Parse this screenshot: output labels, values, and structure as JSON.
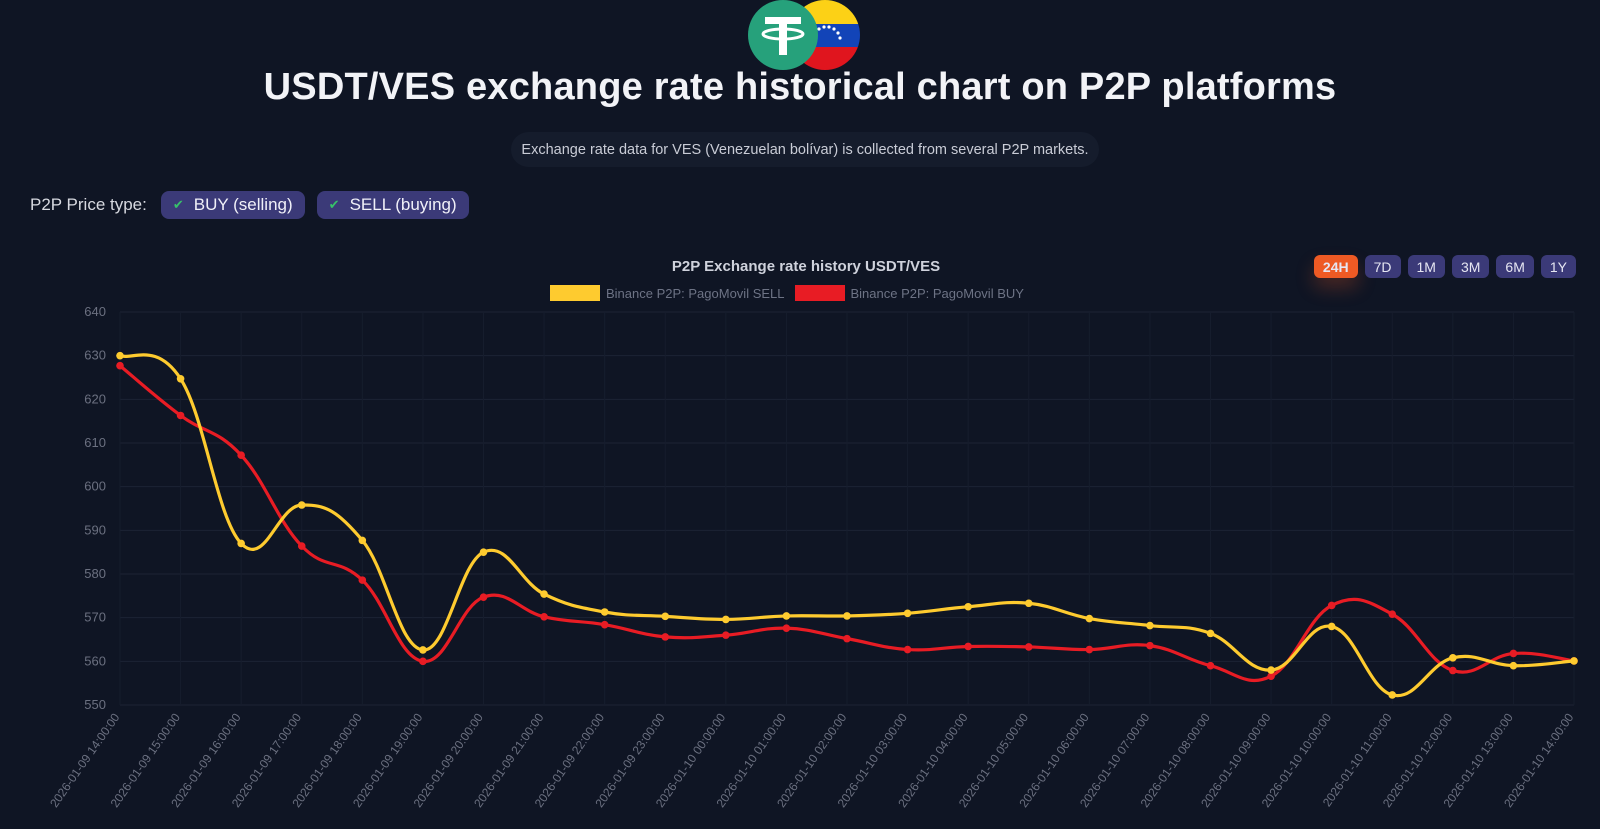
{
  "header": {
    "title": "USDT/VES exchange rate historical chart on P2P platforms",
    "subtitle": "Exchange rate data for VES (Venezuelan bolívar) is collected from several P2P markets."
  },
  "filters": {
    "label": "P2P Price type:",
    "options": [
      {
        "label": "BUY (selling)",
        "checked": true
      },
      {
        "label": "SELL (buying)",
        "checked": true
      }
    ]
  },
  "ranges": {
    "items": [
      "24H",
      "7D",
      "1M",
      "3M",
      "6M",
      "1Y"
    ],
    "active": "24H"
  },
  "colors": {
    "sell": "#fecb2f",
    "buy": "#e81c24",
    "accent": "#ee5a24",
    "chip": "#3b3a78"
  },
  "chart_data": {
    "type": "line",
    "title": "P2P Exchange rate history USDT/VES",
    "xlabel": "",
    "ylabel": "",
    "ylim": [
      550,
      640
    ],
    "yticks": [
      640,
      630,
      620,
      610,
      600,
      590,
      580,
      570,
      560,
      550
    ],
    "categories": [
      "2026-01-09 14:00:00",
      "2026-01-09 15:00:00",
      "2026-01-09 16:00:00",
      "2026-01-09 17:00:00",
      "2026-01-09 18:00:00",
      "2026-01-09 19:00:00",
      "2026-01-09 20:00:00",
      "2026-01-09 21:00:00",
      "2026-01-09 22:00:00",
      "2026-01-09 23:00:00",
      "2026-01-10 00:00:00",
      "2026-01-10 01:00:00",
      "2026-01-10 02:00:00",
      "2026-01-10 03:00:00",
      "2026-01-10 04:00:00",
      "2026-01-10 05:00:00",
      "2026-01-10 06:00:00",
      "2026-01-10 07:00:00",
      "2026-01-10 08:00:00",
      "2026-01-10 09:00:00",
      "2026-01-10 10:00:00",
      "2026-01-10 11:00:00",
      "2026-01-10 12:00:00",
      "2026-01-10 13:00:00",
      "2026-01-10 14:00:00"
    ],
    "series": [
      {
        "name": "Binance P2P: PagoMovil SELL",
        "values": [
          630,
          624.7,
          587,
          595.8,
          587.7,
          562.6,
          585,
          575.4,
          571.3,
          570.3,
          569.6,
          570.4,
          570.4,
          571,
          572.5,
          573.3,
          569.8,
          568.2,
          566.4,
          558,
          568,
          552.3,
          560.8,
          559,
          560.1
        ]
      },
      {
        "name": "Binance P2P: PagoMovil BUY",
        "values": [
          627.7,
          616.3,
          607.2,
          586.4,
          578.6,
          560,
          574.7,
          570.2,
          568.4,
          565.6,
          566,
          567.6,
          565.2,
          562.7,
          563.4,
          563.3,
          562.7,
          563.6,
          559,
          556.6,
          572.8,
          570.8,
          557.9,
          561.8,
          560.1
        ]
      }
    ]
  }
}
